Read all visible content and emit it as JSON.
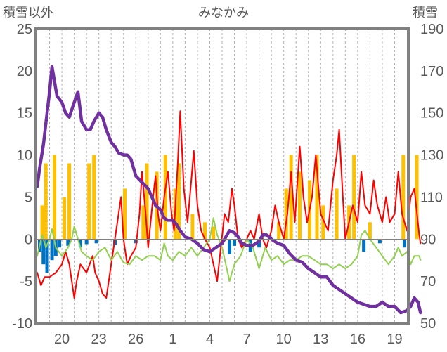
{
  "chart_data": {
    "type": "line",
    "title": "みなかみ",
    "left_axis": {
      "label": "積雪以外",
      "range": [
        -10,
        25
      ],
      "ticks": [
        "25",
        "20",
        "15",
        "10",
        "5",
        "0",
        "-5",
        "-10"
      ]
    },
    "right_axis": {
      "label": "積雪",
      "range": [
        50,
        190
      ],
      "ticks": [
        "190",
        "170",
        "150",
        "130",
        "110",
        "90",
        "70",
        "50"
      ]
    },
    "x_axis": {
      "day_range": [
        18,
        48
      ],
      "tick_days": [
        20,
        23,
        26,
        29,
        32,
        35,
        38,
        41,
        44,
        47
      ],
      "tick_labels": [
        "20",
        "23",
        "26",
        "1",
        "4",
        "7",
        "10",
        "13",
        "16",
        "19"
      ]
    },
    "grid": true,
    "colors": {
      "red": "#ff0000",
      "green": "#92d050",
      "purple": "#7030a0",
      "orange": "#ffc000",
      "blue": "#0070c0",
      "frame": "#808080"
    },
    "series": [
      {
        "color": "red",
        "axis": "left",
        "points": [
          [
            18.0,
            -4
          ],
          [
            18.3,
            -5.5
          ],
          [
            18.6,
            -4.5
          ],
          [
            19,
            -4.5
          ],
          [
            19.5,
            -4
          ],
          [
            20,
            -3
          ],
          [
            20.3,
            -1.5
          ],
          [
            20.6,
            -3
          ],
          [
            20.8,
            -5
          ],
          [
            21,
            -7
          ],
          [
            21.2,
            -5
          ],
          [
            21.5,
            -3
          ],
          [
            22,
            -4
          ],
          [
            22.5,
            -2
          ],
          [
            22.7,
            -4
          ],
          [
            23,
            -5
          ],
          [
            23.3,
            -6.5
          ],
          [
            23.6,
            -7
          ],
          [
            24,
            -3
          ],
          [
            24.5,
            2
          ],
          [
            24.8,
            5
          ],
          [
            25,
            0
          ],
          [
            25.3,
            -3
          ],
          [
            25.6,
            -2
          ],
          [
            26,
            -1
          ],
          [
            26.3,
            3
          ],
          [
            26.5,
            8
          ],
          [
            26.8,
            3
          ],
          [
            27,
            -1
          ],
          [
            27.4,
            5
          ],
          [
            27.6,
            7.5
          ],
          [
            27.8,
            3
          ],
          [
            28,
            1
          ],
          [
            28.3,
            5
          ],
          [
            28.6,
            8
          ],
          [
            28.9,
            3
          ],
          [
            29.1,
            1
          ],
          [
            29.4,
            9
          ],
          [
            29.6,
            15.2
          ],
          [
            29.9,
            6
          ],
          [
            30.2,
            2
          ],
          [
            30.5,
            7
          ],
          [
            30.7,
            10.5
          ],
          [
            31,
            4
          ],
          [
            31.3,
            1
          ],
          [
            31.6,
            0
          ],
          [
            32,
            -1
          ],
          [
            32.3,
            -3
          ],
          [
            32.6,
            -5
          ],
          [
            32.9,
            -1
          ],
          [
            33.2,
            3
          ],
          [
            33.5,
            2
          ],
          [
            33.8,
            6
          ],
          [
            34,
            4
          ],
          [
            34.3,
            0
          ],
          [
            34.6,
            -1
          ],
          [
            35,
            0
          ],
          [
            35.3,
            1
          ],
          [
            35.6,
            0
          ],
          [
            36,
            3
          ],
          [
            36.3,
            0
          ],
          [
            36.6,
            -1
          ],
          [
            37,
            1
          ],
          [
            37.3,
            4
          ],
          [
            37.6,
            2
          ],
          [
            38,
            0
          ],
          [
            38.3,
            3
          ],
          [
            38.6,
            8
          ],
          [
            38.9,
            2
          ],
          [
            39.3,
            11
          ],
          [
            39.6,
            5
          ],
          [
            39.9,
            2
          ],
          [
            40.3,
            5
          ],
          [
            40.6,
            10
          ],
          [
            41,
            3
          ],
          [
            41.3,
            2
          ],
          [
            41.6,
            1
          ],
          [
            42,
            7
          ],
          [
            42.3,
            10
          ],
          [
            42.5,
            13
          ],
          [
            42.8,
            5
          ],
          [
            43,
            0
          ],
          [
            43.3,
            2
          ],
          [
            43.6,
            4
          ],
          [
            44,
            2
          ],
          [
            44.3,
            8
          ],
          [
            44.6,
            4
          ],
          [
            45,
            3
          ],
          [
            45.3,
            7
          ],
          [
            45.6,
            4
          ],
          [
            46,
            2
          ],
          [
            46.3,
            5
          ],
          [
            46.6,
            2
          ],
          [
            47,
            3
          ],
          [
            47.3,
            8
          ],
          [
            47.6,
            3
          ],
          [
            48,
            1
          ],
          [
            48.3,
            5
          ],
          [
            48.6,
            6
          ],
          [
            49,
            0.5
          ],
          [
            49.1,
            -0.5
          ]
        ]
      },
      {
        "color": "green",
        "axis": "left",
        "points": [
          [
            18.0,
            -2
          ],
          [
            18.4,
            0.5
          ],
          [
            18.7,
            -1
          ],
          [
            19,
            0
          ],
          [
            19.2,
            1.2
          ],
          [
            19.5,
            -1
          ],
          [
            20,
            -2
          ],
          [
            20.5,
            -1
          ],
          [
            20.8,
            0
          ],
          [
            21,
            1.5
          ],
          [
            21.3,
            0
          ],
          [
            21.6,
            -1.5
          ],
          [
            22,
            -2
          ],
          [
            22.5,
            -2.5
          ],
          [
            23,
            -1.5
          ],
          [
            23.5,
            -1
          ],
          [
            24,
            -2.5
          ],
          [
            24.5,
            -1.5
          ],
          [
            25,
            -2.8
          ],
          [
            25.5,
            -3
          ],
          [
            26,
            -2
          ],
          [
            26.5,
            -2.5
          ],
          [
            27,
            -2
          ],
          [
            27.5,
            -2
          ],
          [
            28,
            -2.5
          ],
          [
            28.3,
            -0.5
          ],
          [
            28.6,
            -2
          ],
          [
            29,
            -2.5
          ],
          [
            29.5,
            -1.5
          ],
          [
            30,
            -2
          ],
          [
            30.5,
            -1
          ],
          [
            31,
            -2
          ],
          [
            31.5,
            -1
          ],
          [
            32,
            0
          ],
          [
            32.3,
            2.5
          ],
          [
            32.6,
            0.5
          ],
          [
            33,
            -1
          ],
          [
            33.3,
            -3
          ],
          [
            33.6,
            -5
          ],
          [
            34,
            -3
          ],
          [
            34.5,
            -2
          ],
          [
            35,
            0
          ],
          [
            35.5,
            -1
          ],
          [
            36,
            -3.5
          ],
          [
            36.5,
            -1
          ],
          [
            37,
            -2.5
          ],
          [
            37.5,
            -2
          ],
          [
            38,
            -3
          ],
          [
            38.5,
            -2.5
          ],
          [
            39,
            -2.5
          ],
          [
            39.5,
            -2
          ],
          [
            40,
            -2
          ],
          [
            40.5,
            -2.5
          ],
          [
            41,
            -3
          ],
          [
            41.5,
            -3
          ],
          [
            42,
            -3.5
          ],
          [
            42.5,
            -3
          ],
          [
            43,
            -3.5
          ],
          [
            43.5,
            -3
          ],
          [
            44,
            -2
          ],
          [
            44.3,
            0.5
          ],
          [
            44.6,
            1
          ],
          [
            45,
            0
          ],
          [
            45.5,
            -1
          ],
          [
            46,
            -2
          ],
          [
            46.5,
            -3
          ],
          [
            47,
            -2
          ],
          [
            47.3,
            -1
          ],
          [
            47.6,
            -2
          ],
          [
            48,
            -1.5
          ],
          [
            48.3,
            -3
          ],
          [
            48.6,
            -2
          ],
          [
            49,
            -2
          ],
          [
            49.1,
            -2.5
          ]
        ]
      },
      {
        "color": "purple",
        "axis": "right",
        "points": [
          [
            18.0,
            115
          ],
          [
            18.2,
            124
          ],
          [
            18.5,
            135
          ],
          [
            18.8,
            150
          ],
          [
            19,
            160
          ],
          [
            19.2,
            172
          ],
          [
            19.6,
            158
          ],
          [
            20,
            155
          ],
          [
            20.3,
            150
          ],
          [
            20.6,
            148
          ],
          [
            21,
            155
          ],
          [
            21.3,
            160
          ],
          [
            21.6,
            146
          ],
          [
            22,
            142
          ],
          [
            22.3,
            142
          ],
          [
            22.6,
            146
          ],
          [
            23,
            150
          ],
          [
            23.3,
            148
          ],
          [
            23.6,
            142
          ],
          [
            24,
            136
          ],
          [
            24.3,
            134
          ],
          [
            24.6,
            131
          ],
          [
            25,
            130
          ],
          [
            25.3,
            130
          ],
          [
            25.6,
            128
          ],
          [
            26,
            120
          ],
          [
            26.5,
            117
          ],
          [
            27,
            114
          ],
          [
            27.3,
            110
          ],
          [
            27.6,
            106
          ],
          [
            28,
            104
          ],
          [
            28.3,
            100
          ],
          [
            28.6,
            99
          ],
          [
            29,
            99
          ],
          [
            29.3,
            97
          ],
          [
            29.6,
            94
          ],
          [
            30,
            91
          ],
          [
            30.5,
            90
          ],
          [
            31,
            88
          ],
          [
            31.5,
            85
          ],
          [
            32,
            84
          ],
          [
            32.5,
            86
          ],
          [
            33,
            88
          ],
          [
            33.3,
            91
          ],
          [
            33.6,
            94
          ],
          [
            34,
            93
          ],
          [
            34.3,
            91
          ],
          [
            34.6,
            88
          ],
          [
            35,
            87
          ],
          [
            35.5,
            87
          ],
          [
            36,
            89
          ],
          [
            36.3,
            92
          ],
          [
            36.6,
            92
          ],
          [
            37,
            90
          ],
          [
            37.5,
            88
          ],
          [
            38,
            87
          ],
          [
            38.5,
            83
          ],
          [
            39,
            80
          ],
          [
            39.5,
            79
          ],
          [
            40,
            76
          ],
          [
            40.5,
            74
          ],
          [
            41,
            72
          ],
          [
            41.5,
            72
          ],
          [
            42,
            68
          ],
          [
            42.5,
            66
          ],
          [
            43,
            64
          ],
          [
            43.5,
            62
          ],
          [
            44,
            60
          ],
          [
            44.5,
            59
          ],
          [
            45,
            58
          ],
          [
            45.5,
            58
          ],
          [
            46,
            60
          ],
          [
            46.5,
            58
          ],
          [
            47,
            58
          ],
          [
            47.5,
            55
          ],
          [
            48,
            56
          ],
          [
            48.3,
            58
          ],
          [
            48.6,
            62
          ],
          [
            48.9,
            60
          ],
          [
            49.1,
            55
          ]
        ]
      },
      {
        "color": "orange",
        "axis": "left",
        "kind": "bars",
        "points": [
          [
            18.4,
            4
          ],
          [
            18.7,
            9
          ],
          [
            19.4,
            10
          ],
          [
            20.2,
            5
          ],
          [
            20.6,
            9
          ],
          [
            22.2,
            9
          ],
          [
            22.6,
            10
          ],
          [
            25.1,
            6
          ],
          [
            26.6,
            4
          ],
          [
            26.9,
            9
          ],
          [
            27.7,
            8
          ],
          [
            28.4,
            10
          ],
          [
            29.2,
            6
          ],
          [
            29.5,
            9
          ],
          [
            30.6,
            3
          ],
          [
            31.6,
            2
          ],
          [
            32.3,
            1.5
          ],
          [
            37.6,
            2
          ],
          [
            38.2,
            6
          ],
          [
            38.6,
            10
          ],
          [
            39.3,
            8
          ],
          [
            40.1,
            7
          ],
          [
            40.7,
            10
          ],
          [
            41.2,
            4
          ],
          [
            42.3,
            6
          ],
          [
            43.3,
            4
          ],
          [
            43.7,
            10
          ],
          [
            45.0,
            2
          ],
          [
            47.7,
            10
          ],
          [
            48.8,
            10
          ]
        ]
      },
      {
        "color": "blue",
        "axis": "left",
        "kind": "bars",
        "points": [
          [
            18.2,
            -1.5
          ],
          [
            18.5,
            -3
          ],
          [
            18.8,
            -4
          ],
          [
            19.2,
            -2.5
          ],
          [
            19.5,
            -2
          ],
          [
            19.8,
            -1
          ],
          [
            20.5,
            -0.8
          ],
          [
            21.5,
            -1
          ],
          [
            22.0,
            -0.6
          ],
          [
            22.8,
            -0.5
          ],
          [
            24.3,
            -0.7
          ],
          [
            26.0,
            -0.5
          ],
          [
            33.6,
            -1.8
          ],
          [
            34.0,
            -0.8
          ],
          [
            35.3,
            -1.5
          ],
          [
            36.0,
            -1
          ],
          [
            44.5,
            -1.5
          ],
          [
            45.8,
            -0.5
          ],
          [
            47.8,
            -1
          ]
        ]
      }
    ]
  }
}
